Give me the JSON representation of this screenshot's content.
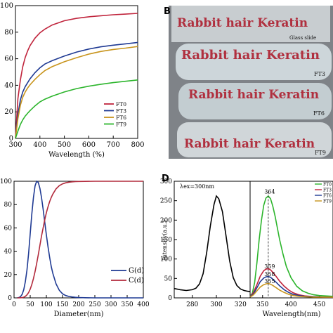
{
  "chart_data": [
    {
      "panel": "A",
      "type": "line",
      "xlabel": "Wavelength (%)",
      "ylabel": "",
      "xlim": [
        300,
        800
      ],
      "ylim": [
        0,
        100
      ],
      "xticks": [
        "300",
        "400",
        "500",
        "600",
        "700",
        "800"
      ],
      "yticks": [
        "0",
        "20",
        "40",
        "60",
        "80",
        "100"
      ],
      "legend_position": "bottom-right",
      "series": [
        {
          "name": "FT0",
          "color": "#c0243c",
          "x": [
            300,
            310,
            320,
            330,
            340,
            350,
            360,
            380,
            400,
            420,
            450,
            500,
            550,
            600,
            650,
            700,
            750,
            800
          ],
          "y": [
            0,
            30,
            44,
            54,
            61,
            66,
            70,
            75.5,
            79.5,
            82.3,
            85.4,
            88.6,
            90.4,
            91.6,
            92.4,
            93.1,
            93.6,
            94.2
          ]
        },
        {
          "name": "FT3",
          "color": "#1f3a93",
          "x": [
            300,
            310,
            320,
            330,
            340,
            350,
            360,
            380,
            400,
            420,
            450,
            500,
            550,
            600,
            650,
            700,
            750,
            800
          ],
          "y": [
            0,
            18,
            29,
            35,
            39,
            42,
            45,
            49.5,
            53.2,
            56,
            58.5,
            62,
            65,
            67.3,
            69,
            70.2,
            71.2,
            72.3
          ]
        },
        {
          "name": "FT6",
          "color": "#c8941c",
          "x": [
            300,
            310,
            320,
            330,
            340,
            350,
            360,
            380,
            400,
            420,
            450,
            500,
            550,
            600,
            650,
            700,
            750,
            800
          ],
          "y": [
            0,
            15,
            25,
            31,
            35,
            38,
            40.5,
            44.5,
            48,
            51,
            54,
            57.7,
            60.8,
            63.5,
            65.5,
            67,
            68,
            69.2
          ]
        },
        {
          "name": "FT9",
          "color": "#2cb52c",
          "x": [
            300,
            310,
            320,
            330,
            340,
            350,
            360,
            380,
            400,
            420,
            450,
            500,
            550,
            600,
            650,
            700,
            750,
            800
          ],
          "y": [
            0,
            5.5,
            10.5,
            14,
            16.8,
            19,
            21,
            24.5,
            27.5,
            29.5,
            31.8,
            35,
            37.5,
            39.3,
            40.8,
            42,
            43,
            44
          ]
        }
      ]
    },
    {
      "panel": "C",
      "type": "line",
      "xlabel": "Diameter(nm)",
      "ylabel": "",
      "xlim": [
        0,
        400
      ],
      "ylim": [
        0,
        100
      ],
      "xticks": [
        "0",
        "50",
        "100",
        "150",
        "200",
        "250",
        "300",
        "350",
        "400"
      ],
      "yticks": [
        "0",
        "20",
        "40",
        "60",
        "80",
        "100"
      ],
      "legend_position": "bottom-right",
      "series": [
        {
          "name": "G(d)",
          "color": "#1f3a93",
          "x": [
            10,
            15,
            20,
            25,
            30,
            35,
            40,
            45,
            50,
            55,
            60,
            65,
            70,
            75,
            80,
            85,
            90,
            95,
            100,
            105,
            110,
            115,
            120,
            130,
            140,
            150,
            160,
            170,
            180,
            190,
            200,
            220,
            250,
            300,
            350,
            400
          ],
          "y": [
            0,
            0.3,
            1,
            3,
            7,
            14,
            24,
            38,
            55,
            72,
            86,
            96,
            100,
            99,
            94,
            86,
            76,
            65,
            54,
            44,
            35,
            27,
            21,
            12,
            6.5,
            3.5,
            2,
            1.2,
            0.8,
            0.5,
            0.3,
            0.1,
            0,
            0,
            0,
            0
          ]
        },
        {
          "name": "C(d)",
          "color": "#b22a3c",
          "x": [
            10,
            15,
            20,
            25,
            30,
            35,
            40,
            45,
            50,
            55,
            60,
            65,
            70,
            75,
            80,
            85,
            90,
            95,
            100,
            105,
            110,
            115,
            120,
            130,
            140,
            150,
            160,
            170,
            180,
            190,
            200,
            220,
            250,
            300,
            350,
            400
          ],
          "y": [
            0,
            0,
            0.1,
            0.2,
            0.6,
            1.3,
            2.6,
            4.5,
            7.5,
            11.5,
            16.5,
            22.5,
            29.5,
            37,
            45,
            53,
            60,
            67,
            73,
            78,
            82.5,
            86,
            89,
            93.5,
            96.2,
            97.8,
            98.7,
            99.2,
            99.5,
            99.7,
            99.8,
            99.9,
            100,
            100,
            100,
            100
          ]
        }
      ]
    },
    {
      "panel": "D",
      "type": "line",
      "subpanel": "left",
      "xlabel": "",
      "ylabel": "Intensity(a.u.)",
      "xlim": [
        265,
        328
      ],
      "ylim": [
        0,
        300
      ],
      "xticks": [
        "280",
        "300",
        "320"
      ],
      "yticks": [
        "0",
        "50",
        "100",
        "150",
        "200",
        "250",
        "300"
      ],
      "annotation": "λex=300nm",
      "series": [
        {
          "name": "",
          "color": "#000000",
          "x": [
            265,
            270,
            275,
            280,
            283,
            286,
            289,
            292,
            295,
            298,
            300,
            302,
            305,
            308,
            311,
            314,
            317,
            320,
            323,
            326,
            328
          ],
          "y": [
            24,
            21,
            19,
            21,
            25,
            36,
            62,
            118,
            185,
            240,
            262,
            255,
            222,
            160,
            95,
            52,
            32,
            23,
            19,
            17,
            16
          ]
        }
      ]
    },
    {
      "panel": "D",
      "type": "line",
      "subpanel": "right",
      "xlabel": "Wavelength(nm)",
      "ylabel": "",
      "xlim": [
        328,
        474
      ],
      "ylim": [
        0,
        300
      ],
      "xticks": [
        "350",
        "400",
        "450"
      ],
      "peak_line_x": 360,
      "peak_labels": [
        {
          "text": "364",
          "x": 360,
          "y": 268
        },
        {
          "text": "359",
          "x": 360,
          "y": 76
        },
        {
          "text": "358",
          "x": 360,
          "y": 56
        },
        {
          "text": "355",
          "x": 360,
          "y": 38
        }
      ],
      "legend_entries_visible": [
        "FT0",
        "FT3",
        "FT6",
        "FT9"
      ],
      "series": [
        {
          "name": "FT0",
          "color": "#2cb52c",
          "x": [
            328,
            332,
            336,
            340,
            344,
            348,
            352,
            356,
            360,
            364,
            368,
            372,
            376,
            380,
            386,
            392,
            400,
            410,
            420,
            430,
            440,
            450,
            460,
            474
          ],
          "y": [
            4,
            12,
            40,
            90,
            150,
            200,
            238,
            257,
            262,
            255,
            236,
            210,
            180,
            150,
            112,
            80,
            52,
            30,
            18,
            12,
            8,
            6,
            5,
            4
          ]
        },
        {
          "name": "FT3",
          "color": "#c0243c",
          "x": [
            328,
            334,
            340,
            346,
            352,
            356,
            360,
            364,
            368,
            374,
            380,
            388,
            396,
            404,
            414,
            424,
            440,
            460,
            474
          ],
          "y": [
            3,
            14,
            34,
            56,
            70,
            74,
            75,
            72,
            66,
            55,
            43,
            30,
            20,
            13,
            8,
            5,
            3,
            2,
            2
          ]
        },
        {
          "name": "FT6",
          "color": "#1f3a93",
          "x": [
            328,
            334,
            340,
            346,
            352,
            356,
            360,
            364,
            368,
            374,
            380,
            388,
            396,
            404,
            414,
            424,
            440,
            460,
            474
          ],
          "y": [
            3,
            10,
            26,
            42,
            51,
            54,
            55,
            53,
            48,
            40,
            31,
            21,
            14,
            9,
            6,
            4,
            3,
            2,
            2
          ]
        },
        {
          "name": "FT9",
          "color": "#c8941c",
          "x": [
            328,
            334,
            340,
            346,
            352,
            356,
            360,
            364,
            368,
            374,
            380,
            388,
            396,
            404,
            414,
            424,
            440,
            460,
            474
          ],
          "y": [
            2,
            8,
            18,
            28,
            34,
            36,
            37,
            35,
            32,
            26,
            20,
            14,
            9,
            6,
            4,
            3,
            2,
            2,
            2
          ]
        }
      ]
    }
  ],
  "panels": {
    "B": {
      "letter": "B",
      "photos": [
        {
          "text": "Rabbit hair Keratin",
          "caption": "Glass slide"
        },
        {
          "text": "Rabbit hair Keratin",
          "caption": "FT3"
        },
        {
          "text": "Rabbit hair Keratin",
          "caption": "FT6"
        },
        {
          "text": "Rabbit hair Keratin",
          "caption": "FT9"
        }
      ]
    },
    "D": {
      "letter": "D"
    }
  }
}
